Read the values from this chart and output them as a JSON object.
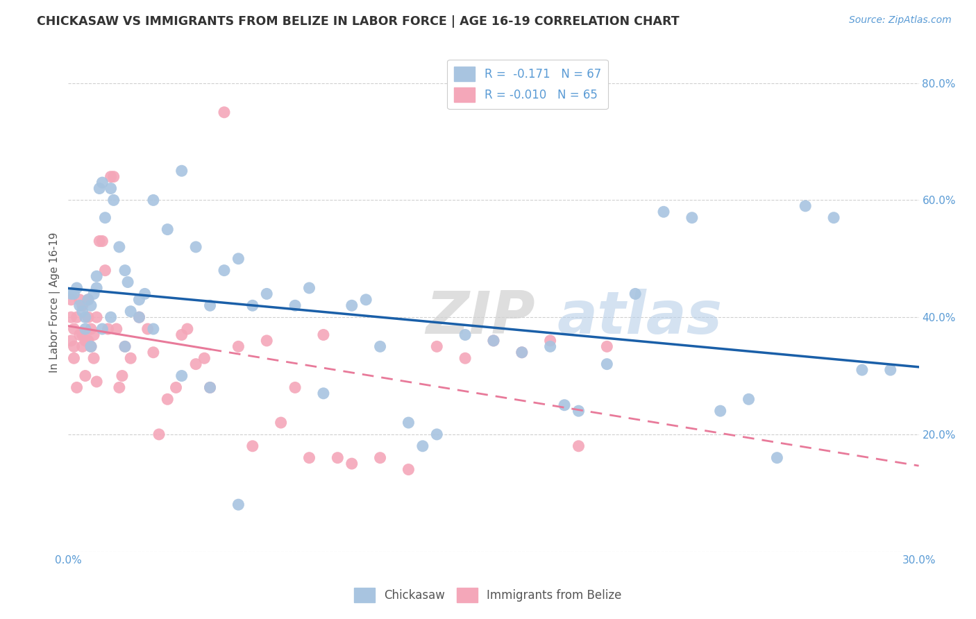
{
  "title": "CHICKASAW VS IMMIGRANTS FROM BELIZE IN LABOR FORCE | AGE 16-19 CORRELATION CHART",
  "source": "Source: ZipAtlas.com",
  "ylabel": "In Labor Force | Age 16-19",
  "xmin": 0.0,
  "xmax": 0.3,
  "ymin": 0.0,
  "ymax": 0.85,
  "chickasaw_R": -0.171,
  "chickasaw_N": 67,
  "belize_R": -0.01,
  "belize_N": 65,
  "chickasaw_color": "#a8c4e0",
  "belize_color": "#f4a7b9",
  "chickasaw_line_color": "#1a5fa8",
  "belize_line_color": "#e87a9a",
  "background_color": "#ffffff",
  "grid_color": "#d0d0d0",
  "watermark": "ZIPatlas",
  "chickasaw_x": [
    0.001,
    0.002,
    0.003,
    0.004,
    0.005,
    0.006,
    0.006,
    0.007,
    0.008,
    0.009,
    0.01,
    0.01,
    0.011,
    0.012,
    0.013,
    0.015,
    0.016,
    0.018,
    0.02,
    0.021,
    0.022,
    0.025,
    0.027,
    0.03,
    0.035,
    0.04,
    0.045,
    0.05,
    0.055,
    0.06,
    0.065,
    0.07,
    0.08,
    0.085,
    0.09,
    0.1,
    0.105,
    0.11,
    0.12,
    0.125,
    0.13,
    0.14,
    0.15,
    0.16,
    0.17,
    0.175,
    0.18,
    0.19,
    0.2,
    0.21,
    0.22,
    0.23,
    0.24,
    0.25,
    0.26,
    0.27,
    0.28,
    0.29,
    0.008,
    0.012,
    0.015,
    0.02,
    0.025,
    0.03,
    0.04,
    0.05,
    0.06
  ],
  "chickasaw_y": [
    0.44,
    0.44,
    0.45,
    0.42,
    0.41,
    0.4,
    0.38,
    0.43,
    0.42,
    0.44,
    0.45,
    0.47,
    0.62,
    0.63,
    0.57,
    0.62,
    0.6,
    0.52,
    0.48,
    0.46,
    0.41,
    0.43,
    0.44,
    0.6,
    0.55,
    0.65,
    0.52,
    0.42,
    0.48,
    0.5,
    0.42,
    0.44,
    0.42,
    0.45,
    0.27,
    0.42,
    0.43,
    0.35,
    0.22,
    0.18,
    0.2,
    0.37,
    0.36,
    0.34,
    0.35,
    0.25,
    0.24,
    0.32,
    0.44,
    0.58,
    0.57,
    0.24,
    0.26,
    0.16,
    0.59,
    0.57,
    0.31,
    0.31,
    0.35,
    0.38,
    0.4,
    0.35,
    0.4,
    0.38,
    0.3,
    0.28,
    0.08
  ],
  "belize_x": [
    0.001,
    0.001,
    0.001,
    0.002,
    0.002,
    0.002,
    0.003,
    0.003,
    0.004,
    0.004,
    0.005,
    0.005,
    0.005,
    0.006,
    0.006,
    0.007,
    0.007,
    0.007,
    0.008,
    0.008,
    0.009,
    0.009,
    0.01,
    0.01,
    0.011,
    0.012,
    0.013,
    0.014,
    0.015,
    0.016,
    0.017,
    0.018,
    0.019,
    0.02,
    0.022,
    0.025,
    0.028,
    0.03,
    0.032,
    0.035,
    0.038,
    0.04,
    0.042,
    0.045,
    0.048,
    0.05,
    0.055,
    0.06,
    0.065,
    0.07,
    0.075,
    0.08,
    0.085,
    0.09,
    0.095,
    0.1,
    0.11,
    0.12,
    0.13,
    0.14,
    0.15,
    0.16,
    0.17,
    0.18,
    0.19
  ],
  "belize_y": [
    0.43,
    0.4,
    0.36,
    0.35,
    0.33,
    0.38,
    0.4,
    0.28,
    0.37,
    0.43,
    0.42,
    0.35,
    0.37,
    0.36,
    0.3,
    0.43,
    0.4,
    0.36,
    0.35,
    0.38,
    0.37,
    0.33,
    0.29,
    0.4,
    0.53,
    0.53,
    0.48,
    0.38,
    0.64,
    0.64,
    0.38,
    0.28,
    0.3,
    0.35,
    0.33,
    0.4,
    0.38,
    0.34,
    0.2,
    0.26,
    0.28,
    0.37,
    0.38,
    0.32,
    0.33,
    0.28,
    0.75,
    0.35,
    0.18,
    0.36,
    0.22,
    0.28,
    0.16,
    0.37,
    0.16,
    0.15,
    0.16,
    0.14,
    0.35,
    0.33,
    0.36,
    0.34,
    0.36,
    0.18,
    0.35
  ]
}
